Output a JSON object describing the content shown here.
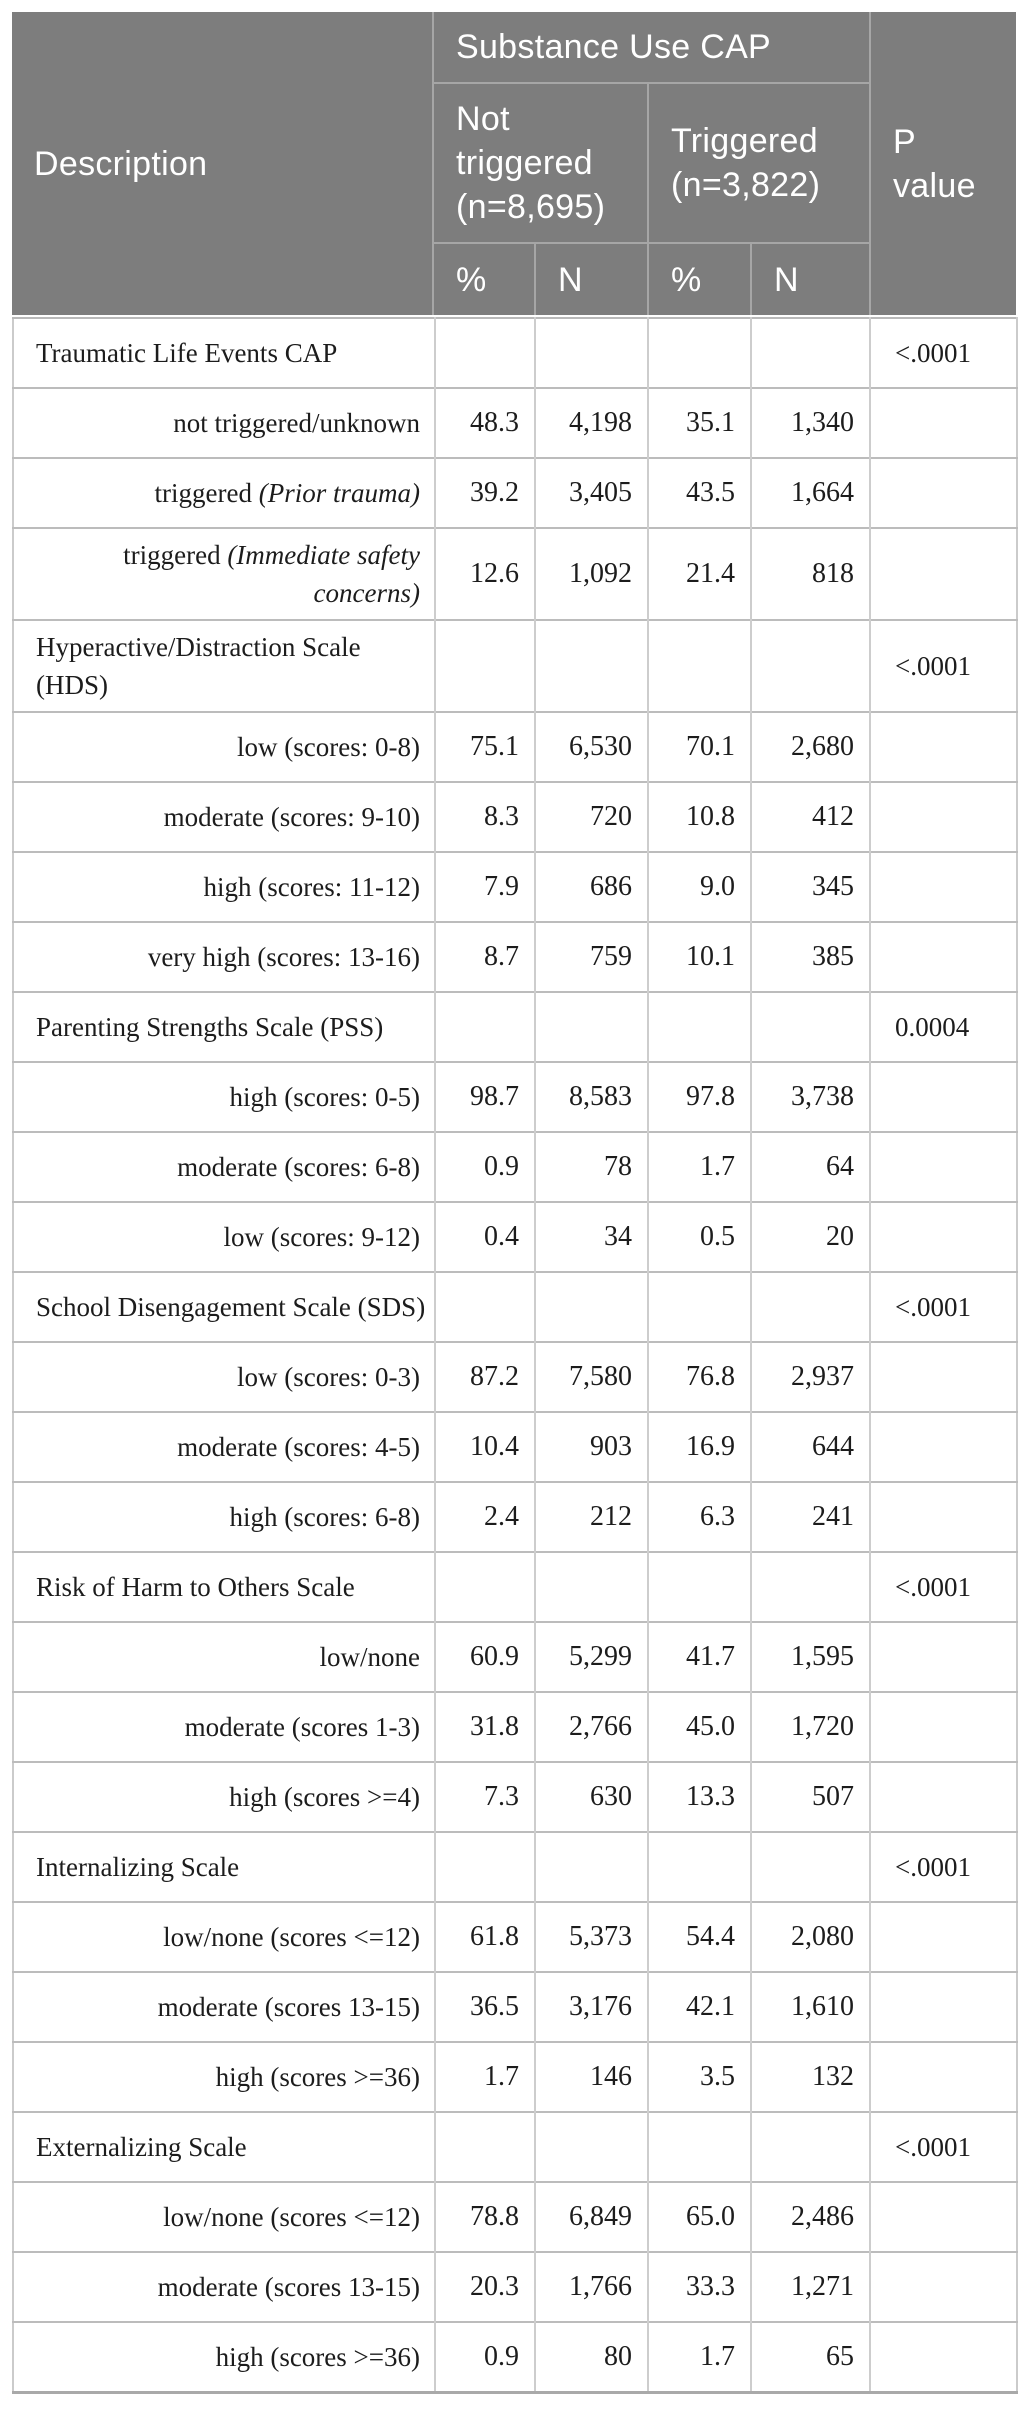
{
  "colors": {
    "header_background": "#7d7d7d",
    "header_divider": "#a6a6a6",
    "header_text": "#ffffff",
    "body_gridline": "#c6c6c6",
    "body_text": "#1c1c1c"
  },
  "table": {
    "header": {
      "description": "Description",
      "group": "Substance Use CAP",
      "not_triggered": "Not triggered (n=8,695)",
      "triggered": "Triggered (n=3,822)",
      "pct": "%",
      "n": "N",
      "p_value": "P value"
    },
    "rows": [
      {
        "type": "category",
        "label": "Traumatic Life Events CAP",
        "p": "<.0001"
      },
      {
        "type": "sub",
        "label": "not triggered/unknown",
        "values": [
          "48.3",
          "4,198",
          "35.1",
          "1,340"
        ]
      },
      {
        "type": "sub",
        "label": "triggered ",
        "label_em": "(Prior trauma)",
        "values": [
          "39.2",
          "3,405",
          "43.5",
          "1,664"
        ]
      },
      {
        "type": "sub",
        "label": "triggered ",
        "label_em": "(Immediate safety concerns)",
        "values": [
          "12.6",
          "1,092",
          "21.4",
          "818"
        ]
      },
      {
        "type": "category",
        "label": "Hyperactive/Distraction Scale (HDS)",
        "p": "<.0001"
      },
      {
        "type": "sub",
        "label": "low (scores: 0-8)",
        "values": [
          "75.1",
          "6,530",
          "70.1",
          "2,680"
        ]
      },
      {
        "type": "sub",
        "label": "moderate (scores: 9-10)",
        "values": [
          "8.3",
          "720",
          "10.8",
          "412"
        ]
      },
      {
        "type": "sub",
        "label": "high (scores: 11-12)",
        "values": [
          "7.9",
          "686",
          "9.0",
          "345"
        ]
      },
      {
        "type": "sub",
        "label": "very high (scores: 13-16)",
        "values": [
          "8.7",
          "759",
          "10.1",
          "385"
        ]
      },
      {
        "type": "category",
        "label": "Parenting Strengths Scale (PSS)",
        "p": "0.0004"
      },
      {
        "type": "sub",
        "label": "high (scores: 0-5)",
        "values": [
          "98.7",
          "8,583",
          "97.8",
          "3,738"
        ]
      },
      {
        "type": "sub",
        "label": "moderate (scores: 6-8)",
        "values": [
          "0.9",
          "78",
          "1.7",
          "64"
        ]
      },
      {
        "type": "sub",
        "label": "low (scores: 9-12)",
        "values": [
          "0.4",
          "34",
          "0.5",
          "20"
        ]
      },
      {
        "type": "category",
        "label": "School Disengagement Scale (SDS)",
        "p": "<.0001"
      },
      {
        "type": "sub",
        "label": "low (scores: 0-3)",
        "values": [
          "87.2",
          "7,580",
          "76.8",
          "2,937"
        ]
      },
      {
        "type": "sub",
        "label": "moderate (scores: 4-5)",
        "values": [
          "10.4",
          "903",
          "16.9",
          "644"
        ]
      },
      {
        "type": "sub",
        "label": "high (scores: 6-8)",
        "values": [
          "2.4",
          "212",
          "6.3",
          "241"
        ]
      },
      {
        "type": "category",
        "label": "Risk of Harm to Others Scale",
        "p": "<.0001"
      },
      {
        "type": "sub",
        "label": "low/none",
        "values": [
          "60.9",
          "5,299",
          "41.7",
          "1,595"
        ]
      },
      {
        "type": "sub",
        "label": "moderate (scores 1-3)",
        "values": [
          "31.8",
          "2,766",
          "45.0",
          "1,720"
        ]
      },
      {
        "type": "sub",
        "label": "high (scores >=4)",
        "values": [
          "7.3",
          "630",
          "13.3",
          "507"
        ]
      },
      {
        "type": "category",
        "label": "Internalizing Scale",
        "p": "<.0001"
      },
      {
        "type": "sub",
        "label": "low/none (scores <=12)",
        "values": [
          "61.8",
          "5,373",
          "54.4",
          "2,080"
        ]
      },
      {
        "type": "sub",
        "label": "moderate (scores 13-15)",
        "values": [
          "36.5",
          "3,176",
          "42.1",
          "1,610"
        ]
      },
      {
        "type": "sub",
        "label": "high (scores >=36)",
        "values": [
          "1.7",
          "146",
          "3.5",
          "132"
        ]
      },
      {
        "type": "category",
        "label": "Externalizing Scale",
        "p": "<.0001"
      },
      {
        "type": "sub",
        "label": "low/none (scores <=12)",
        "values": [
          "78.8",
          "6,849",
          "65.0",
          "2,486"
        ]
      },
      {
        "type": "sub",
        "label": "moderate (scores 13-15)",
        "values": [
          "20.3",
          "1,766",
          "33.3",
          "1,271"
        ]
      },
      {
        "type": "sub",
        "label": "high (scores >=36)",
        "values": [
          "0.9",
          "80",
          "1.7",
          "65"
        ]
      }
    ]
  }
}
